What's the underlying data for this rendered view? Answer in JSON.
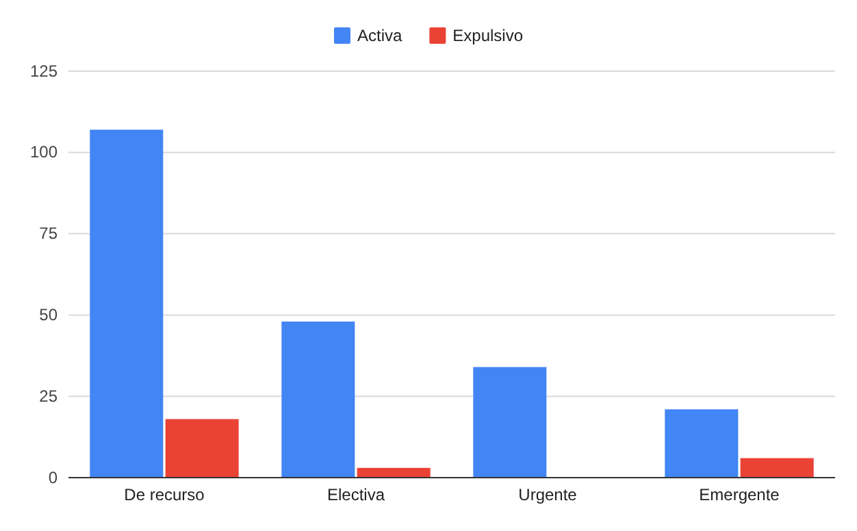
{
  "chart_data": {
    "type": "bar",
    "categories": [
      "De recurso",
      "Electiva",
      "Urgente",
      "Emergente"
    ],
    "series": [
      {
        "name": "Activa",
        "color": "#4285f4",
        "values": [
          107,
          48,
          34,
          21
        ]
      },
      {
        "name": "Expulsivo",
        "color": "#ea4335",
        "values": [
          18,
          3,
          0,
          6
        ]
      }
    ],
    "ylim": [
      0,
      125
    ],
    "yticks": [
      0,
      25,
      50,
      75,
      100,
      125
    ],
    "grid": "y",
    "legend": "top"
  }
}
